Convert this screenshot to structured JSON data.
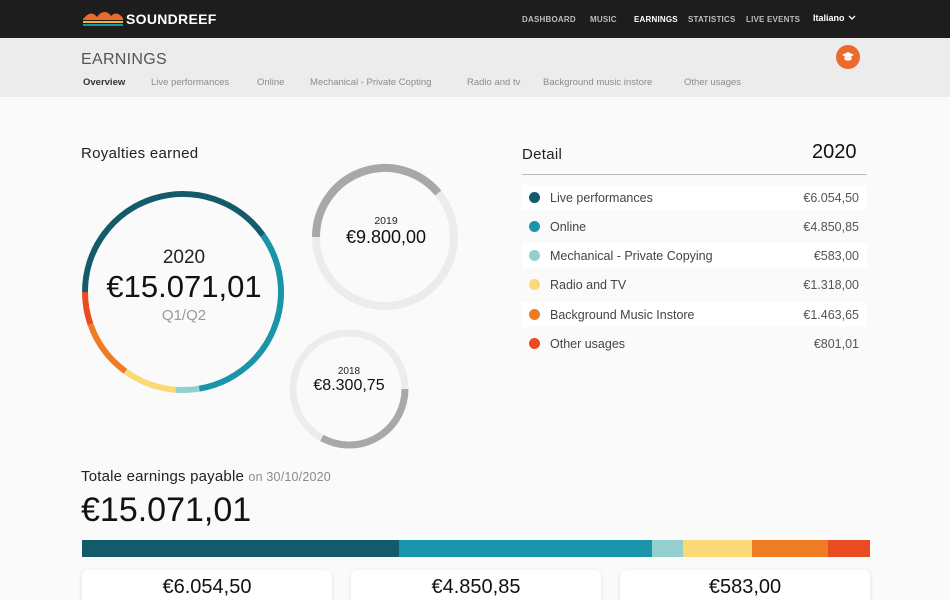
{
  "brand": {
    "name": "SOUNDREEF"
  },
  "nav": {
    "items": [
      "DASHBOARD",
      "MUSIC",
      "EARNINGS",
      "STATISTICS",
      "LIVE EVENTS"
    ],
    "active": "EARNINGS",
    "language": "Italiano"
  },
  "page": {
    "title": "EARNINGS",
    "tabs": [
      "Overview",
      "Live performances",
      "Online",
      "Mechanical - Private Copting",
      "Radio and tv",
      "Background music instore",
      "Other usages"
    ],
    "active_tab": "Overview"
  },
  "royalties": {
    "title": "Royalties earned",
    "current": {
      "year": "2020",
      "amount": "€15.071,01",
      "period": "Q1/Q2"
    },
    "previous": [
      {
        "year": "2019",
        "amount": "€9.800,00"
      },
      {
        "year": "2018",
        "amount": "€8.300,75"
      }
    ]
  },
  "detail": {
    "title": "Detail",
    "year": "2020",
    "rows": [
      {
        "label": "Live performances",
        "amount": "€6.054,50",
        "value": 6054.5,
        "color": "#135a6a"
      },
      {
        "label": "Online",
        "amount": "€4.850,85",
        "value": 4850.85,
        "color": "#1a94a8"
      },
      {
        "label": "Mechanical - Private Copying",
        "amount": "€583,00",
        "value": 583.0,
        "color": "#94cfcf"
      },
      {
        "label": "Radio and TV",
        "amount": "€1.318,00",
        "value": 1318.0,
        "color": "#fbd977"
      },
      {
        "label": "Background Music Instore",
        "amount": "€1.463,65",
        "value": 1463.65,
        "color": "#ef7b23"
      },
      {
        "label": "Other usages",
        "amount": "€801,01",
        "value": 801.01,
        "color": "#e94b22"
      }
    ]
  },
  "totals": {
    "label": "Totale earnings payable",
    "date_text": "on 30/10/2020",
    "amount": "€15.071,01",
    "cards": [
      "€6.054,50",
      "€4.850,85",
      "€583,00"
    ]
  },
  "colors": {
    "accent": "#ea6a2b",
    "topbar": "#1d1d1d",
    "ring_gray": "#a8a8a8",
    "ring_track": "#ececec"
  }
}
